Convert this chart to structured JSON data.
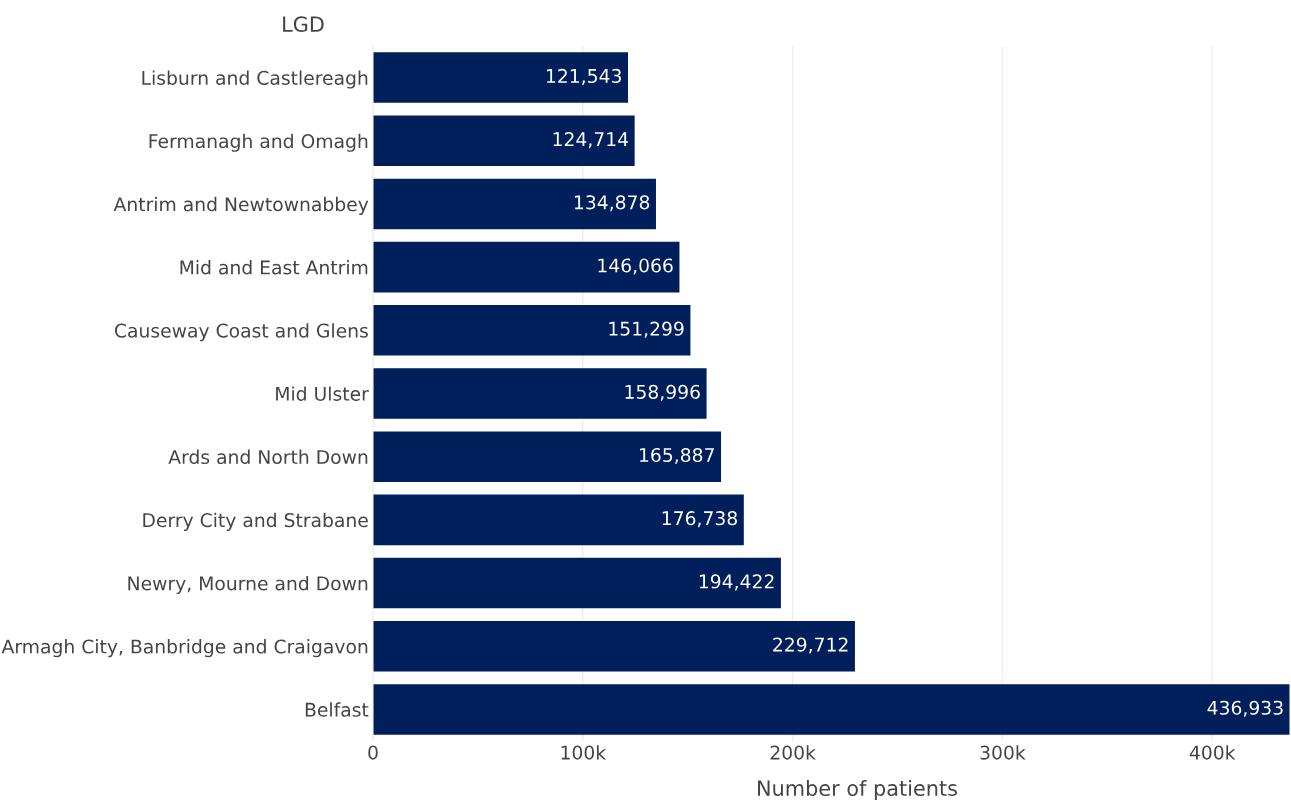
{
  "chart_data": {
    "type": "bar",
    "orientation": "horizontal",
    "ylabel": "LGD",
    "xlabel": "Number of patients",
    "categories": [
      "Lisburn and Castlereagh",
      "Fermanagh and Omagh",
      "Antrim and Newtownabbey",
      "Mid and East Antrim",
      "Causeway Coast and Glens",
      "Mid Ulster",
      "Ards and North Down",
      "Derry City and Strabane",
      "Newry, Mourne and Down",
      "Armagh City, Banbridge and Craigavon",
      "Belfast"
    ],
    "values": [
      121543,
      124714,
      134878,
      146066,
      151299,
      158996,
      165887,
      176738,
      194422,
      229712,
      436933
    ],
    "color": "#001f5b",
    "value_labels": [
      "121,543",
      "124,714",
      "134,878",
      "146,066",
      "151,299",
      "158,996",
      "165,887",
      "176,738",
      "194,422",
      "229,712",
      "436,933"
    ],
    "xlim": [
      0,
      436933
    ],
    "xticks": [
      0,
      {
        "value": 100000,
        "label": "100k"
      },
      {
        "value": 200000,
        "label": "200k"
      },
      {
        "value": 300000,
        "label": "300k"
      },
      {
        "value": 400000,
        "label": "400k"
      }
    ],
    "grid": "x",
    "legend": false
  }
}
